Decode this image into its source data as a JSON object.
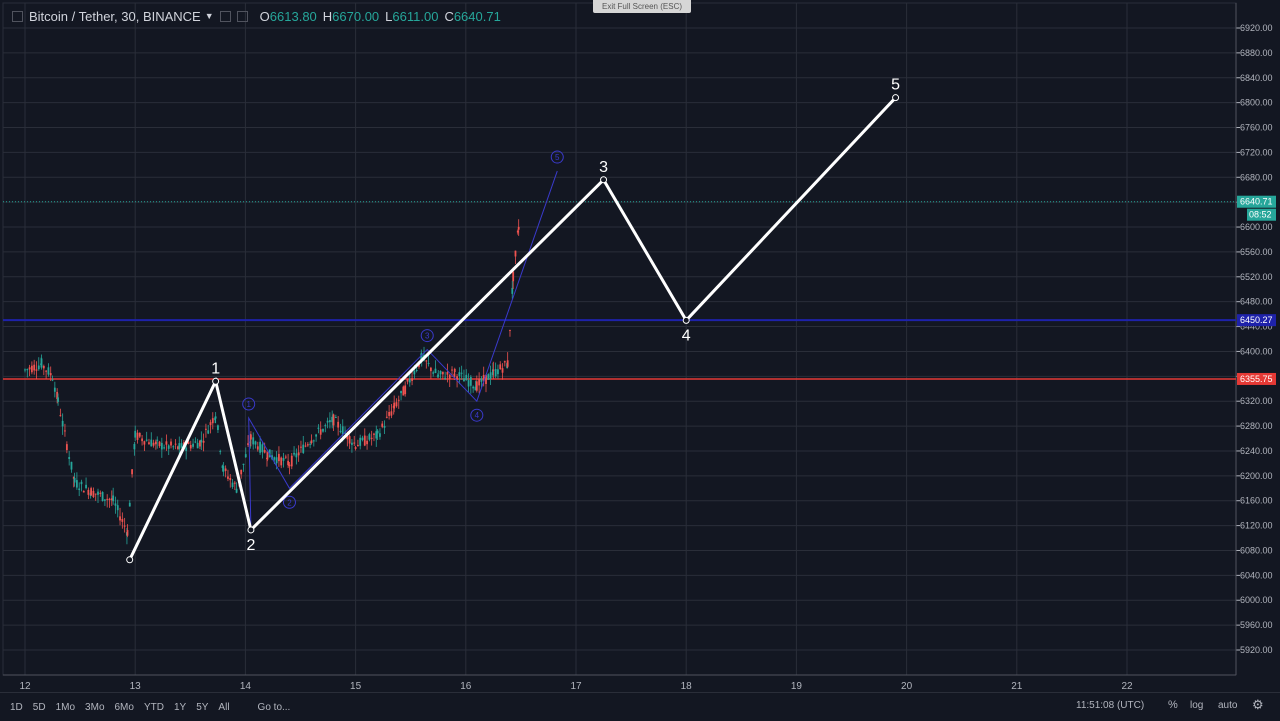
{
  "legend": {
    "symbol": "Bitcoin / Tether, 30, BINANCE",
    "open_label": "O",
    "open": "6613.80",
    "high_label": "H",
    "high": "6670.00",
    "low_label": "L",
    "low": "6611.00",
    "close_label": "C",
    "close": "6640.71"
  },
  "exit_fullscreen": "Exit Full Screen (ESC)",
  "price_axis": {
    "ticks": [
      "6920.00",
      "6880.00",
      "6840.00",
      "6800.00",
      "6760.00",
      "6720.00",
      "6680.00",
      "6640.00",
      "6600.00",
      "6560.00",
      "6520.00",
      "6480.00",
      "6440.00",
      "6400.00",
      "6360.00",
      "6320.00",
      "6280.00",
      "6240.00",
      "6200.00",
      "6160.00",
      "6120.00",
      "6080.00",
      "6040.00",
      "6000.00",
      "5960.00",
      "5920.00"
    ],
    "last_price": "6640.71",
    "countdown": "08:52",
    "blue_level": "6450.27",
    "red_level": "6355.75"
  },
  "time_axis": {
    "labels": [
      "12",
      "13",
      "14",
      "15",
      "16",
      "17",
      "18",
      "19",
      "20",
      "21",
      "22"
    ]
  },
  "wave_labels": [
    "1",
    "2",
    "3",
    "4",
    "5"
  ],
  "sub_wave_labels": [
    "1",
    "2",
    "3",
    "4",
    "5"
  ],
  "colors": {
    "background": "#131722",
    "grid": "#2a2e39",
    "up": "#26a69a",
    "down": "#ef5350",
    "blue_line": "#1e22aa",
    "red_line": "#e53935",
    "wave": "#ffffff",
    "sub_wave": "#3a3acc"
  },
  "bottom_bar": {
    "ranges": [
      "1D",
      "5D",
      "1Mo",
      "3Mo",
      "6Mo",
      "YTD",
      "1Y",
      "5Y",
      "All"
    ],
    "goto": "Go to...",
    "clock": "11:51:08 (UTC)",
    "percent": "%",
    "log": "log",
    "auto": "auto"
  },
  "chart_data": {
    "type": "candlestick",
    "y_range": [
      5900,
      6940
    ],
    "x_range_days": [
      12,
      22
    ],
    "horizontal_levels": [
      6450.27,
      6355.75
    ],
    "last_price": 6640.71,
    "elliott_wave_main": [
      {
        "label": "",
        "day": 12.95,
        "price": 6065
      },
      {
        "label": "1",
        "day": 13.73,
        "price": 6352
      },
      {
        "label": "2",
        "day": 14.05,
        "price": 6113
      },
      {
        "label": "3",
        "day": 17.25,
        "price": 6676
      },
      {
        "label": "4",
        "day": 18.0,
        "price": 6450
      },
      {
        "label": "5",
        "day": 19.9,
        "price": 6808
      }
    ],
    "elliott_wave_sub": [
      {
        "label": "1",
        "day": 14.03,
        "price": 6293
      },
      {
        "label": "2",
        "day": 14.4,
        "price": 6180
      },
      {
        "label": "3",
        "day": 15.65,
        "price": 6403
      },
      {
        "label": "4",
        "day": 16.1,
        "price": 6320
      },
      {
        "label": "5",
        "day": 16.83,
        "price": 6690
      }
    ]
  }
}
